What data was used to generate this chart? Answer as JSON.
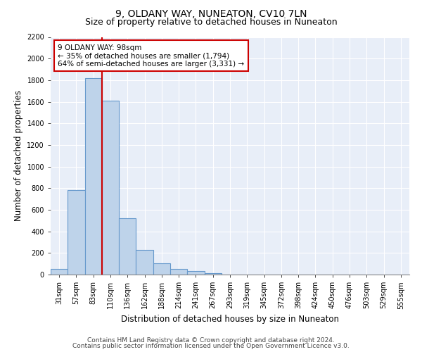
{
  "title": "9, OLDANY WAY, NUNEATON, CV10 7LN",
  "subtitle": "Size of property relative to detached houses in Nuneaton",
  "xlabel": "Distribution of detached houses by size in Nuneaton",
  "ylabel": "Number of detached properties",
  "bin_labels": [
    "31sqm",
    "57sqm",
    "83sqm",
    "110sqm",
    "136sqm",
    "162sqm",
    "188sqm",
    "214sqm",
    "241sqm",
    "267sqm",
    "293sqm",
    "319sqm",
    "345sqm",
    "372sqm",
    "398sqm",
    "424sqm",
    "450sqm",
    "476sqm",
    "503sqm",
    "529sqm",
    "555sqm"
  ],
  "bar_values": [
    50,
    780,
    1820,
    1610,
    520,
    230,
    105,
    55,
    32,
    15,
    0,
    0,
    0,
    0,
    0,
    0,
    0,
    0,
    0,
    0,
    0
  ],
  "bar_color": "#bed3ea",
  "bar_edge_color": "#6699cc",
  "vline_color": "#cc0000",
  "annotation_text": "9 OLDANY WAY: 98sqm\n← 35% of detached houses are smaller (1,794)\n64% of semi-detached houses are larger (3,331) →",
  "annotation_box_color": "#ffffff",
  "annotation_box_edge_color": "#cc0000",
  "ylim": [
    0,
    2200
  ],
  "yticks": [
    0,
    200,
    400,
    600,
    800,
    1000,
    1200,
    1400,
    1600,
    1800,
    2000,
    2200
  ],
  "plot_bg_color": "#e8eef8",
  "fig_bg_color": "#ffffff",
  "grid_color": "#ffffff",
  "footer_line1": "Contains HM Land Registry data © Crown copyright and database right 2024.",
  "footer_line2": "Contains public sector information licensed under the Open Government Licence v3.0.",
  "title_fontsize": 10,
  "subtitle_fontsize": 9,
  "axis_label_fontsize": 8.5,
  "tick_fontsize": 7,
  "annotation_fontsize": 7.5,
  "footer_fontsize": 6.5,
  "vline_bin_index": 2
}
